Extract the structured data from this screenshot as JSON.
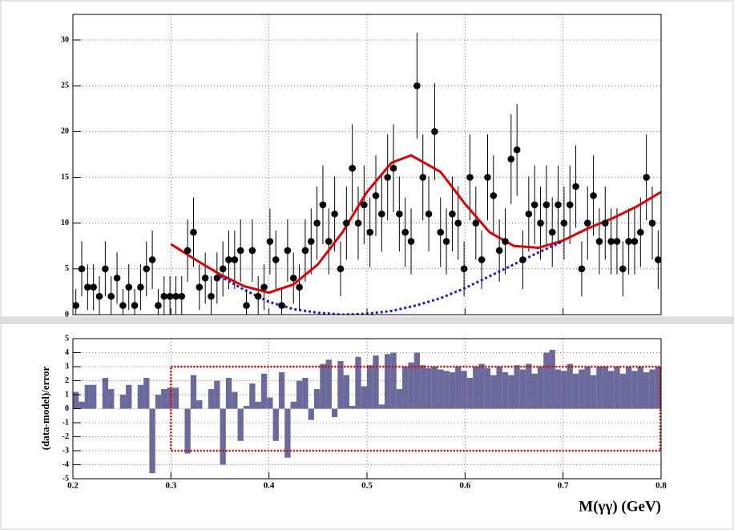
{
  "chart_data": [
    {
      "type": "errorbar",
      "x": [
        0.203,
        0.209,
        0.215,
        0.221,
        0.227,
        0.233,
        0.239,
        0.245,
        0.251,
        0.257,
        0.263,
        0.269,
        0.275,
        0.281,
        0.287,
        0.293,
        0.299,
        0.305,
        0.311,
        0.317,
        0.323,
        0.329,
        0.335,
        0.341,
        0.347,
        0.353,
        0.359,
        0.365,
        0.371,
        0.377,
        0.383,
        0.389,
        0.395,
        0.401,
        0.407,
        0.413,
        0.419,
        0.425,
        0.431,
        0.437,
        0.443,
        0.449,
        0.455,
        0.461,
        0.467,
        0.473,
        0.479,
        0.485,
        0.491,
        0.497,
        0.503,
        0.509,
        0.515,
        0.521,
        0.527,
        0.533,
        0.539,
        0.545,
        0.551,
        0.557,
        0.563,
        0.569,
        0.575,
        0.581,
        0.587,
        0.593,
        0.599,
        0.605,
        0.611,
        0.617,
        0.623,
        0.629,
        0.635,
        0.641,
        0.647,
        0.653,
        0.659,
        0.665,
        0.671,
        0.677,
        0.683,
        0.689,
        0.695,
        0.701,
        0.707,
        0.713,
        0.719,
        0.725,
        0.731,
        0.737,
        0.743,
        0.749,
        0.755,
        0.761,
        0.767,
        0.773,
        0.779,
        0.785,
        0.791,
        0.797
      ],
      "values": [
        1,
        5,
        3,
        3,
        2,
        5,
        2,
        4,
        1,
        3,
        1,
        3,
        5,
        6,
        1,
        2,
        2,
        2,
        2,
        7,
        9,
        3,
        4,
        2,
        4,
        5,
        6,
        6,
        7,
        1,
        7,
        2,
        3,
        8,
        6,
        1,
        7,
        4,
        3,
        7,
        8,
        10,
        12,
        8,
        11,
        5,
        10,
        16,
        10,
        12,
        9,
        13,
        11,
        15,
        16,
        11,
        9,
        8,
        25,
        15,
        11,
        20,
        9,
        8,
        11,
        10,
        5,
        15,
        10,
        6,
        15,
        13,
        7,
        8,
        17,
        18,
        6,
        11,
        12,
        10,
        12,
        9,
        12,
        10,
        12,
        14,
        5,
        10,
        13,
        8,
        10,
        8,
        8,
        5,
        8,
        8,
        9,
        15,
        10,
        6
      ],
      "errors": [
        1.8,
        3.0,
        2.5,
        2.5,
        2.2,
        3.0,
        2.2,
        2.8,
        1.8,
        2.5,
        1.8,
        2.5,
        3.0,
        3.2,
        1.8,
        2.2,
        2.2,
        2.2,
        2.2,
        3.4,
        3.8,
        2.5,
        2.8,
        2.2,
        2.8,
        3.0,
        3.2,
        3.2,
        3.4,
        1.8,
        3.4,
        2.2,
        2.5,
        3.6,
        3.2,
        1.8,
        3.4,
        2.8,
        2.5,
        3.4,
        3.6,
        4.0,
        4.3,
        3.6,
        4.1,
        3.0,
        4.0,
        4.8,
        4.0,
        4.3,
        3.8,
        4.4,
        4.1,
        4.7,
        4.8,
        4.1,
        3.8,
        3.6,
        5.8,
        4.7,
        4.1,
        5.3,
        3.8,
        3.6,
        4.1,
        4.0,
        3.0,
        4.7,
        4.0,
        3.2,
        4.7,
        4.4,
        3.4,
        3.6,
        4.9,
        5.0,
        3.2,
        4.1,
        4.3,
        4.0,
        4.3,
        3.8,
        4.3,
        4.0,
        4.3,
        4.5,
        3.0,
        4.0,
        4.4,
        3.6,
        4.0,
        3.6,
        3.6,
        3.0,
        3.6,
        3.6,
        3.8,
        4.7,
        4.0,
        3.2
      ],
      "color": "#000000",
      "curves": [
        {
          "x": [
            0.3,
            0.325,
            0.35,
            0.375,
            0.4,
            0.425,
            0.45,
            0.475,
            0.5,
            0.525,
            0.545,
            0.575,
            0.6,
            0.625,
            0.65,
            0.675,
            0.7,
            0.725,
            0.75,
            0.775,
            0.8
          ],
          "values": [
            7.7,
            6.0,
            4.4,
            3.1,
            2.4,
            3.3,
            5.5,
            9.0,
            13.4,
            16.6,
            17.4,
            15.6,
            12.1,
            9.0,
            7.5,
            7.3,
            8.1,
            9.4,
            10.5,
            11.8,
            13.4
          ],
          "color": "#e00000",
          "style": "solid"
        },
        {
          "x": [
            0.35,
            0.375,
            0.4,
            0.425,
            0.45,
            0.475,
            0.5,
            0.525,
            0.55,
            0.575,
            0.6,
            0.625,
            0.65,
            0.675,
            0.7
          ],
          "values": [
            4.2,
            2.7,
            1.4,
            0.6,
            0.2,
            0,
            0.1,
            0.4,
            1.0,
            1.8,
            2.9,
            4.2,
            5.5,
            6.8,
            8.0
          ],
          "color": "#1a1ad0",
          "style": "dashed"
        }
      ],
      "xlim": [
        0.2,
        0.8
      ],
      "ylim": [
        0,
        32.8
      ],
      "yticks": [
        0,
        5,
        10,
        15,
        20,
        25,
        30
      ],
      "grid": true
    },
    {
      "type": "histogram",
      "bins": [
        0.2,
        0.206,
        0.212,
        0.218,
        0.224,
        0.23,
        0.236,
        0.242,
        0.248,
        0.254,
        0.26,
        0.266,
        0.272,
        0.278,
        0.284,
        0.29,
        0.296,
        0.302,
        0.308,
        0.314,
        0.32,
        0.326,
        0.332,
        0.338,
        0.344,
        0.35,
        0.356,
        0.362,
        0.368,
        0.374,
        0.38,
        0.386,
        0.392,
        0.398,
        0.404,
        0.41,
        0.416,
        0.422,
        0.428,
        0.434,
        0.44,
        0.446,
        0.452,
        0.458,
        0.464,
        0.47,
        0.476,
        0.482,
        0.488,
        0.494,
        0.5,
        0.506,
        0.512,
        0.518,
        0.524,
        0.53,
        0.536,
        0.542,
        0.548,
        0.554,
        0.56,
        0.566,
        0.572,
        0.578,
        0.584,
        0.59,
        0.596,
        0.602,
        0.608,
        0.614,
        0.62,
        0.626,
        0.632,
        0.638,
        0.644,
        0.65,
        0.656,
        0.662,
        0.668,
        0.674,
        0.68,
        0.686,
        0.692,
        0.698,
        0.704,
        0.71,
        0.716,
        0.722,
        0.728,
        0.734,
        0.74,
        0.746,
        0.752,
        0.758,
        0.764,
        0.77,
        0.776,
        0.782,
        0.788,
        0.794,
        0.8
      ],
      "values": [
        1.2,
        0.5,
        1.7,
        1.7,
        0,
        2.2,
        1.4,
        0,
        1.0,
        1.7,
        0,
        1.7,
        2.2,
        -4.6,
        1.0,
        1.4,
        1.5,
        1.5,
        0,
        -3.2,
        2.4,
        0.6,
        0,
        1.4,
        2.0,
        -4.0,
        2.2,
        1.2,
        -2.3,
        0.2,
        1.8,
        0.5,
        2.5,
        0.8,
        -2.3,
        2.6,
        -3.5,
        0.5,
        2.0,
        2.2,
        -0.8,
        1.4,
        3.2,
        3.5,
        -0.6,
        3.4,
        2.4,
        0.2,
        3.7,
        1.6,
        3.1,
        3.8,
        0.3,
        3.9,
        4.0,
        1.4,
        3.0,
        3.3,
        4.0,
        3.1,
        2.9,
        3.0,
        2.8,
        2.7,
        2.6,
        3.0,
        2.7,
        2.2,
        3.0,
        3.2,
        2.9,
        2.4,
        3.0,
        2.6,
        2.4,
        3.1,
        2.8,
        3.2,
        2.5,
        3.0,
        4.0,
        4.2,
        2.8,
        2.7,
        3.2,
        2.5,
        2.8,
        3.0,
        2.4,
        3.0,
        3.0,
        2.7,
        3.0,
        2.5,
        3.0,
        2.7,
        3.0,
        2.6,
        2.8,
        3.0
      ],
      "color": "#6a6a9c",
      "box": {
        "x": [
          0.3,
          0.8
        ],
        "y": [
          -3,
          3
        ],
        "color": "#e00000"
      },
      "ylabel": "(data-model)/error",
      "xlabel": "M(γγ) (GeV)",
      "xlim": [
        0.2,
        0.8
      ],
      "ylim": [
        -5,
        5
      ],
      "xticks": [
        0.2,
        0.3,
        0.4,
        0.5,
        0.6,
        0.7,
        0.8
      ],
      "yticks": [
        -5,
        -4,
        -3,
        -2,
        -1,
        0,
        1,
        2,
        3,
        4,
        5
      ],
      "grid": true
    }
  ]
}
